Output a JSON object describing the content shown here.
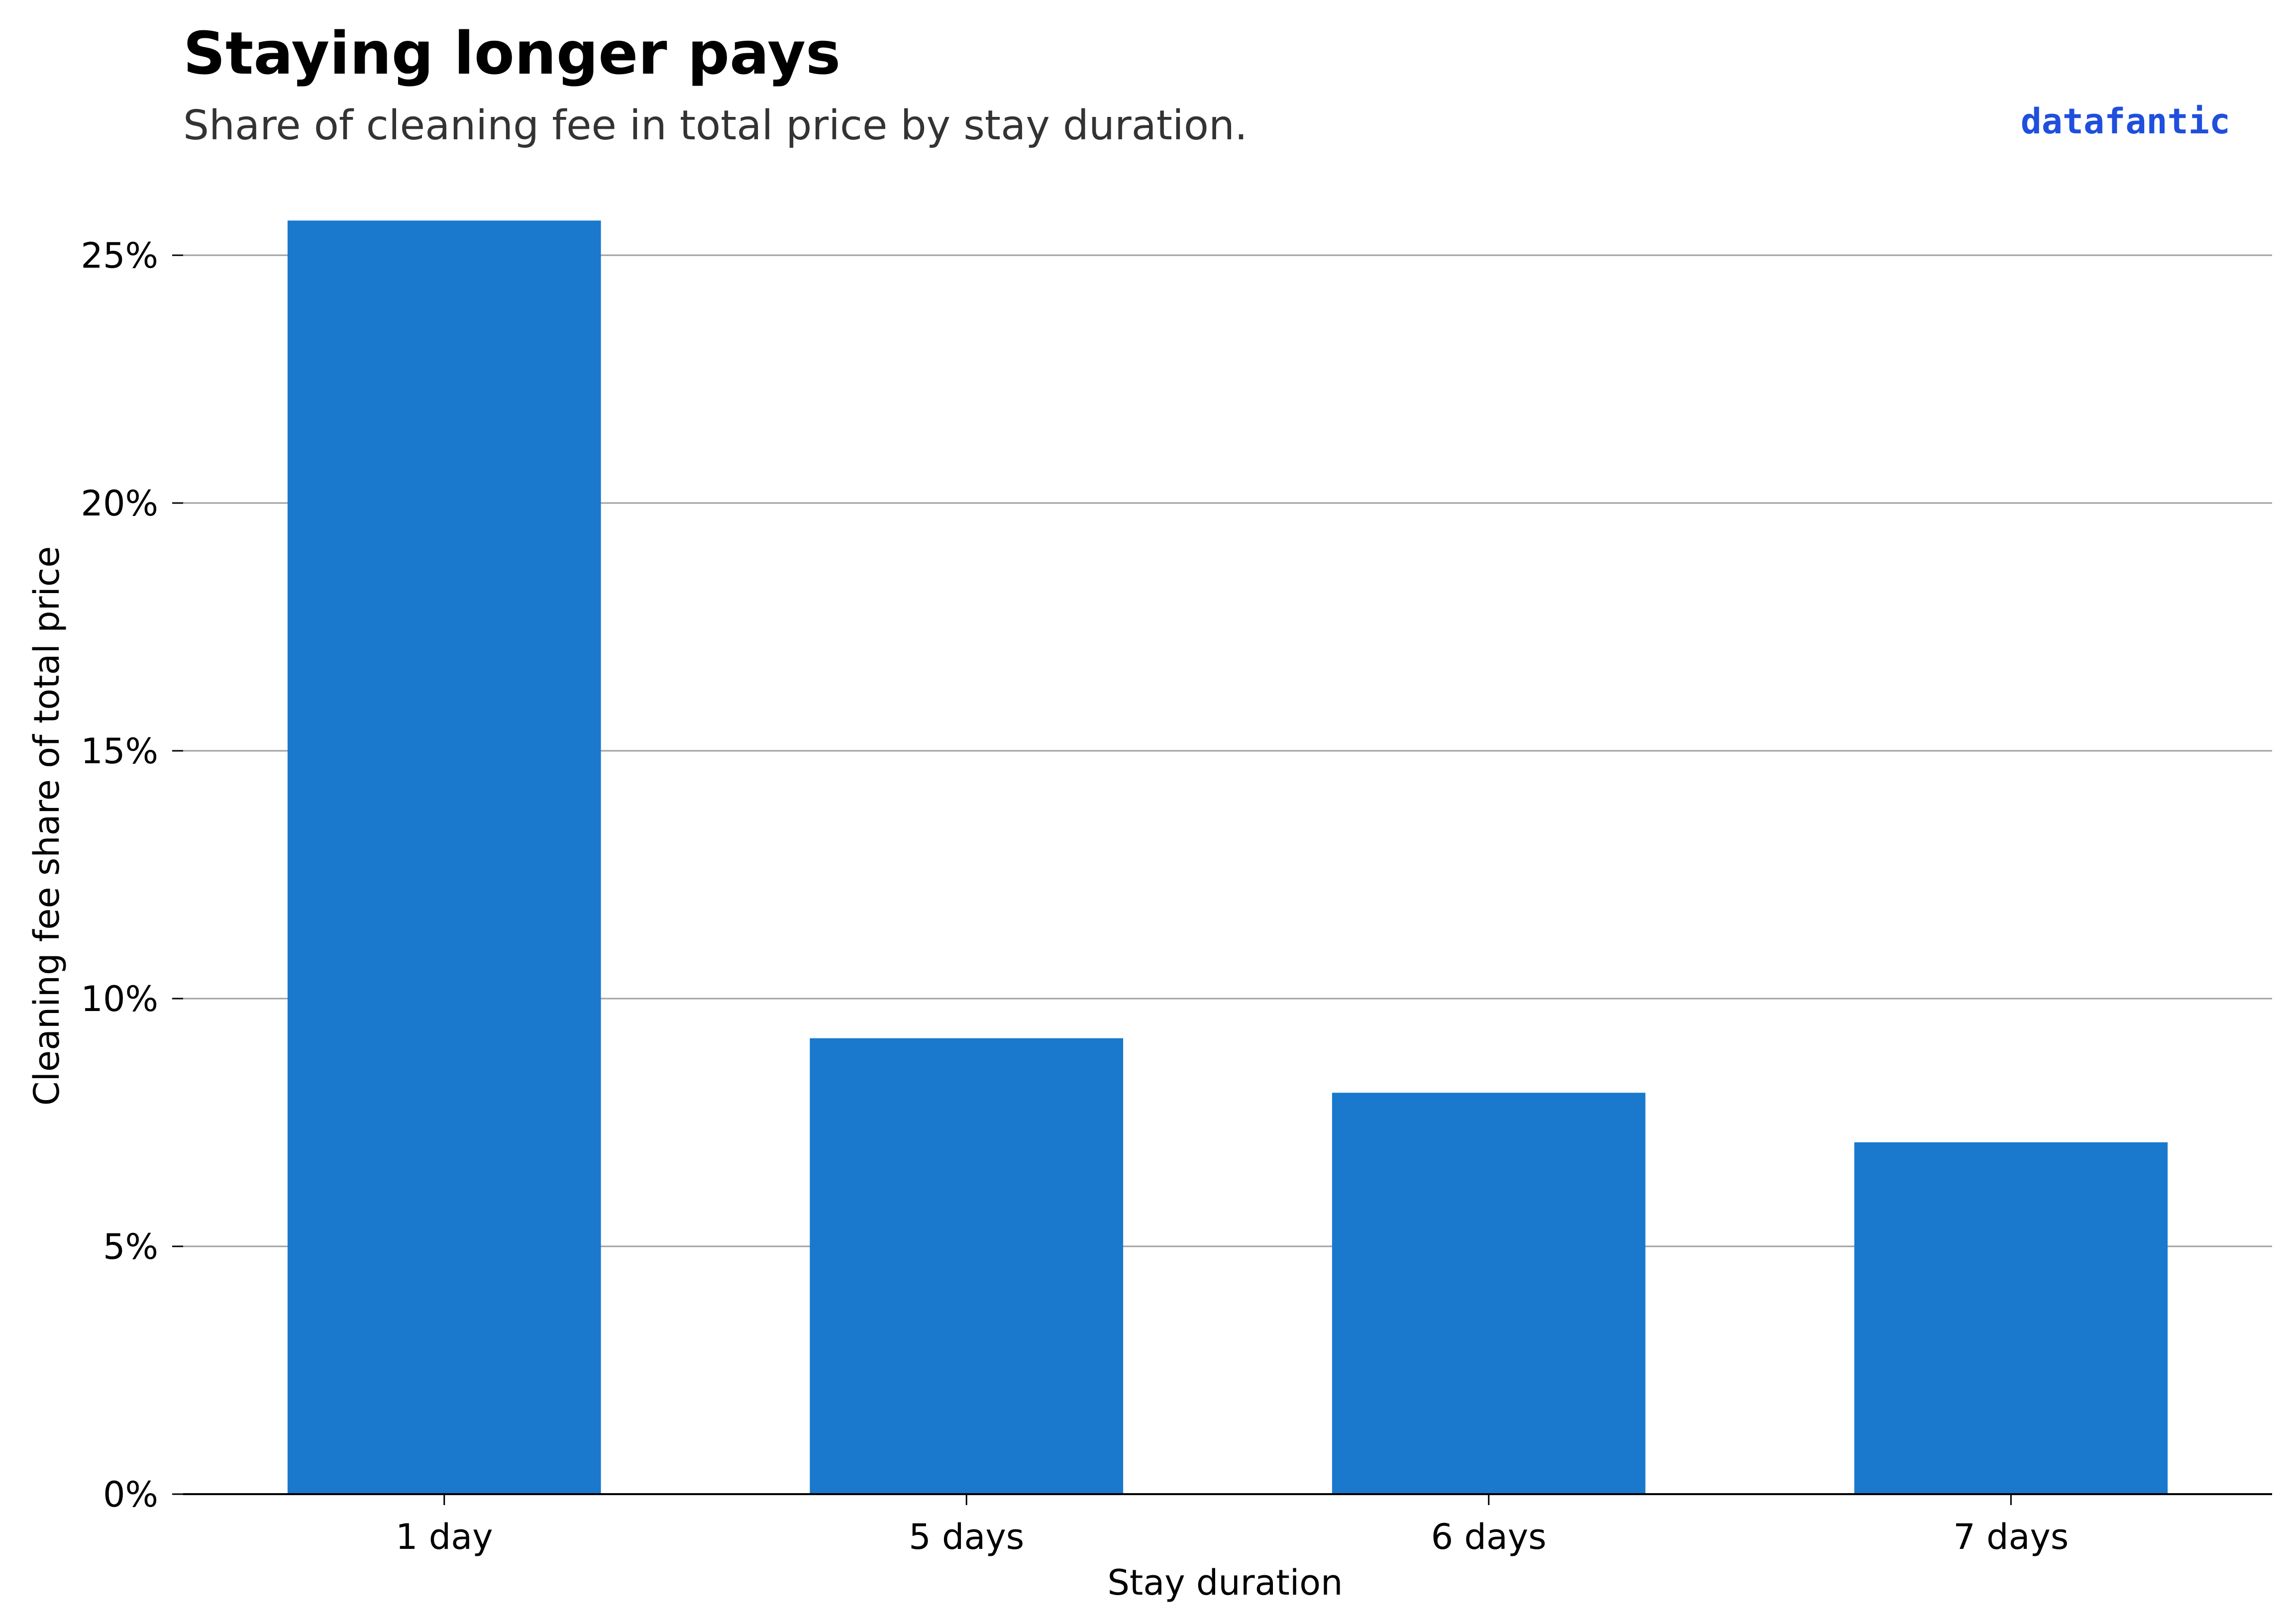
{
  "brand": "datafantic",
  "colors": {
    "bar": "#1a78cd",
    "brand": "#1f4fdc",
    "grid": "#a0a0a0",
    "axis": "#000000"
  },
  "chart_data": {
    "type": "bar",
    "title": "Staying longer pays",
    "subtitle": "Share of cleaning fee in total price by stay duration.",
    "xlabel": "Stay duration",
    "ylabel": "Cleaning fee share of total price",
    "categories": [
      "1 day",
      "5 days",
      "6 days",
      "7 days"
    ],
    "values": [
      25.7,
      9.2,
      8.1,
      7.1
    ],
    "unit": "%",
    "ylim": [
      0,
      26
    ],
    "yticks": [
      0,
      5,
      10,
      15,
      20,
      25
    ],
    "ytick_labels": [
      "0%",
      "5%",
      "10%",
      "15%",
      "20%",
      "25%"
    ],
    "grid": "horizontal",
    "legend": "none"
  }
}
